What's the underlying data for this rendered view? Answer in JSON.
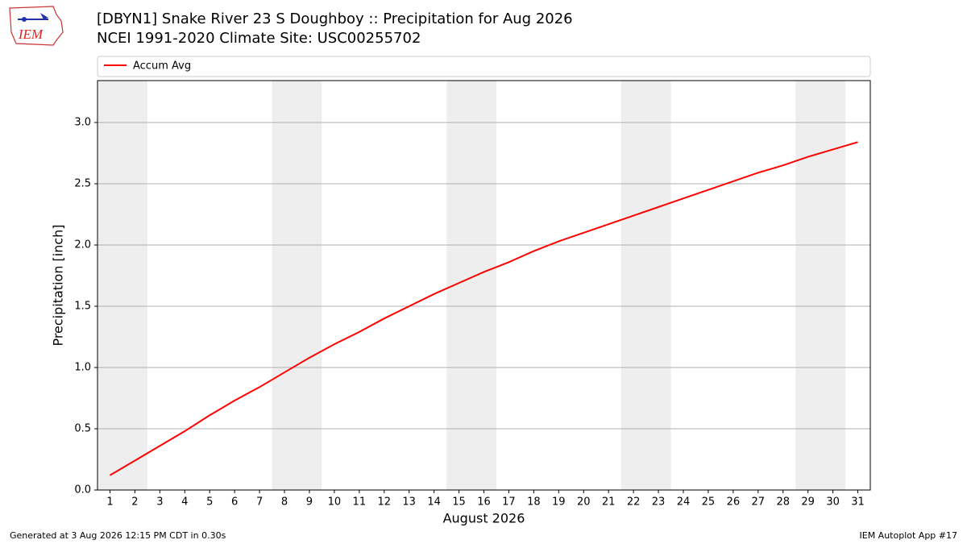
{
  "logo_text": "IEM",
  "footer_left": "Generated at 3 Aug 2026 12:15 PM CDT in 0.30s",
  "footer_right": "IEM Autoplot App #17",
  "chart_data": {
    "type": "line",
    "title": "[DBYN1] Snake River 23 S Doughboy :: Precipitation for Aug 2026",
    "subtitle": "NCEI 1991-2020 Climate Site: USC00255702",
    "x_label": "August 2026",
    "y_label": "Precipitation [inch]",
    "x": [
      1,
      2,
      3,
      4,
      5,
      6,
      7,
      8,
      9,
      10,
      11,
      12,
      13,
      14,
      15,
      16,
      17,
      18,
      19,
      20,
      21,
      22,
      23,
      24,
      25,
      26,
      27,
      28,
      29,
      30,
      31
    ],
    "series": [
      {
        "name": "Accum Avg",
        "color": "#ff0000",
        "values": [
          0.12,
          0.24,
          0.36,
          0.48,
          0.61,
          0.73,
          0.84,
          0.96,
          1.08,
          1.19,
          1.29,
          1.4,
          1.5,
          1.6,
          1.69,
          1.78,
          1.86,
          1.95,
          2.03,
          2.1,
          2.17,
          2.24,
          2.31,
          2.38,
          2.45,
          2.52,
          2.59,
          2.65,
          2.72,
          2.78,
          2.84
        ]
      }
    ],
    "xlim": [
      0.5,
      31.5
    ],
    "ylim": [
      0,
      3.342
    ],
    "xticks": [
      1,
      2,
      3,
      4,
      5,
      6,
      7,
      8,
      9,
      10,
      11,
      12,
      13,
      14,
      15,
      16,
      17,
      18,
      19,
      20,
      21,
      22,
      23,
      24,
      25,
      26,
      27,
      28,
      29,
      30,
      31
    ],
    "yticks": [
      {
        "value": 0,
        "label": "0.0"
      },
      0.5,
      {
        "value": 1,
        "label": "1.0"
      },
      1.5,
      {
        "value": 2,
        "label": "2.0"
      },
      2.5,
      {
        "value": 3,
        "label": "3.0"
      }
    ],
    "grid": "y",
    "shaded_x_ranges": [
      [
        0.5,
        2.5
      ],
      [
        7.5,
        9.5
      ],
      [
        14.5,
        16.5
      ],
      [
        21.5,
        23.5
      ],
      [
        28.5,
        30.5
      ]
    ],
    "shade_color": "#eeeeee",
    "legend": "top"
  }
}
